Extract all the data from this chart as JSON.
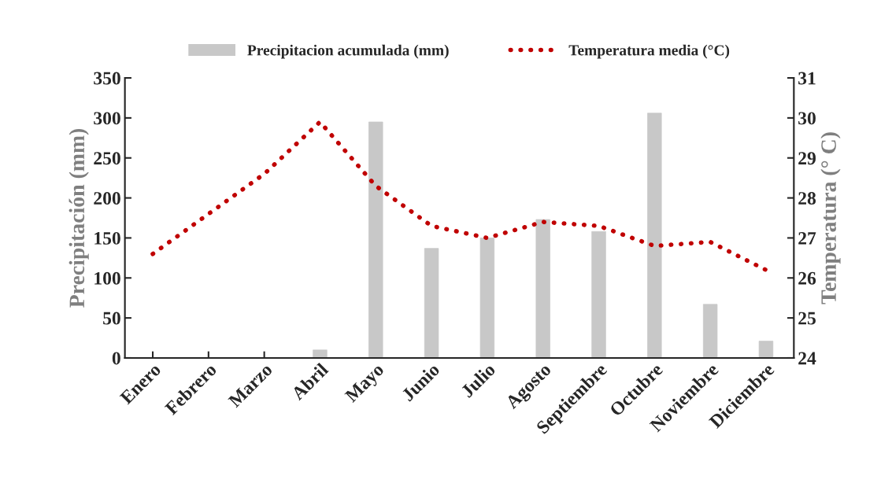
{
  "chart_data": {
    "type": "bar",
    "categories": [
      "Enero",
      "Febrero",
      "Marzo",
      "Abril",
      "Mayo",
      "Junio",
      "Julio",
      "Agosto",
      "Septiembre",
      "Octubre",
      "Noviembre",
      "Diciembre"
    ],
    "series": [
      {
        "name": "Precipitacion acumulada (mm)",
        "color": "#c8c8c8",
        "values": [
          0,
          0,
          0,
          10,
          295,
          137,
          150,
          173,
          158,
          306,
          67,
          21
        ]
      },
      {
        "name": "Temperatura media (°C)",
        "type": "line",
        "axis": "y2",
        "color": "#c00000",
        "line_style": "dotted",
        "values": [
          26.6,
          27.6,
          28.6,
          29.9,
          28.3,
          27.3,
          27.0,
          27.4,
          27.3,
          26.8,
          26.9,
          26.2
        ]
      }
    ],
    "ylabel": "Precipitación (mm)",
    "y2label": "Temperatura (° C)",
    "ylim": [
      0,
      350
    ],
    "yticks": [
      0,
      50,
      100,
      150,
      200,
      250,
      300,
      350
    ],
    "y2lim": [
      24,
      31
    ],
    "y2ticks": [
      24,
      25,
      26,
      27,
      28,
      29,
      30,
      31
    ],
    "grid": false,
    "legend": "top"
  }
}
